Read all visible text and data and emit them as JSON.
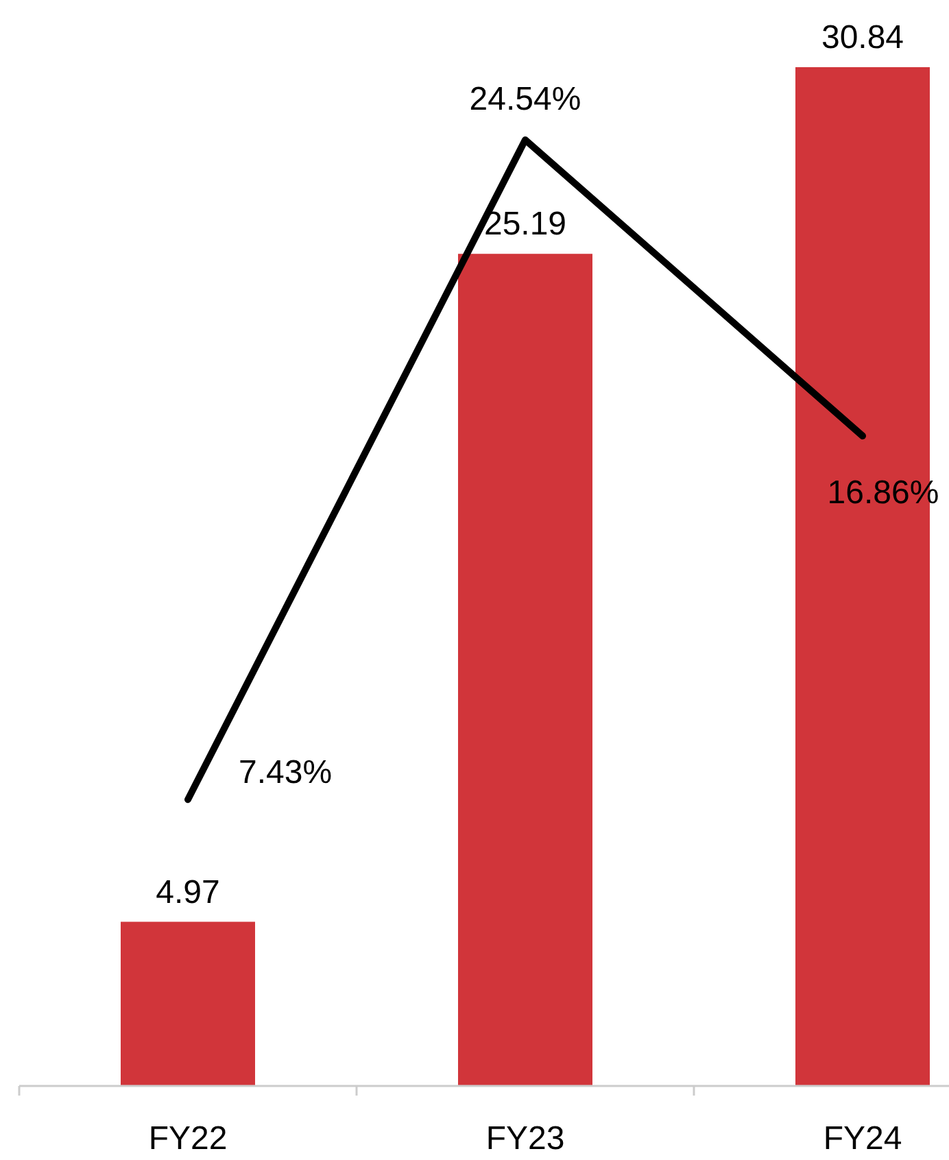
{
  "chart_data": {
    "type": "bar",
    "categories": [
      "FY22",
      "FY23",
      "FY24"
    ],
    "series": [
      {
        "color": "#d1353a",
        "values": [
          4.97,
          25.19,
          30.84
        ]
      },
      {
        "type": "line",
        "axis": "y2",
        "color": "#000000",
        "values": [
          7.43,
          24.54,
          16.86
        ],
        "value_labels": [
          "7.43%",
          "24.54%",
          "16.86%"
        ]
      }
    ],
    "data_labels": true,
    "grid": false,
    "marker": "none",
    "line_style": "solid"
  }
}
